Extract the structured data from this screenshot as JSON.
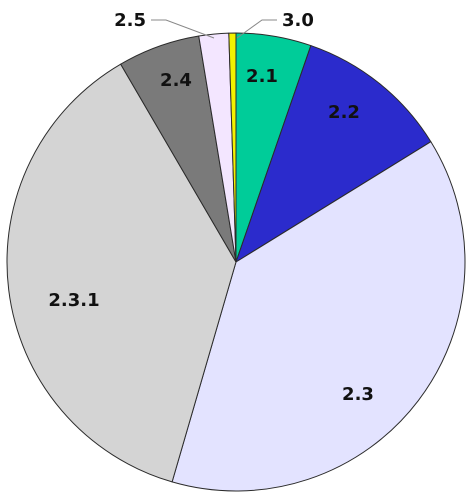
{
  "chart_data": {
    "type": "pie",
    "start_angle_deg": 0,
    "direction": "clockwise",
    "slices": [
      {
        "label": "2.1",
        "value": 5.3,
        "color": "#00cc99"
      },
      {
        "label": "2.2",
        "value": 10.9,
        "color": "#2b2bcc"
      },
      {
        "label": "2.3",
        "value": 38.3,
        "color": "#e3e3ff"
      },
      {
        "label": "2.3.1",
        "value": 37.1,
        "color": "#d4d4d4"
      },
      {
        "label": "2.4",
        "value": 5.8,
        "color": "#7a7a7a"
      },
      {
        "label": "2.5",
        "value": 2.1,
        "color": "#f3e6ff"
      },
      {
        "label": "3.0",
        "value": 0.5,
        "color": "#f2f200"
      }
    ]
  }
}
